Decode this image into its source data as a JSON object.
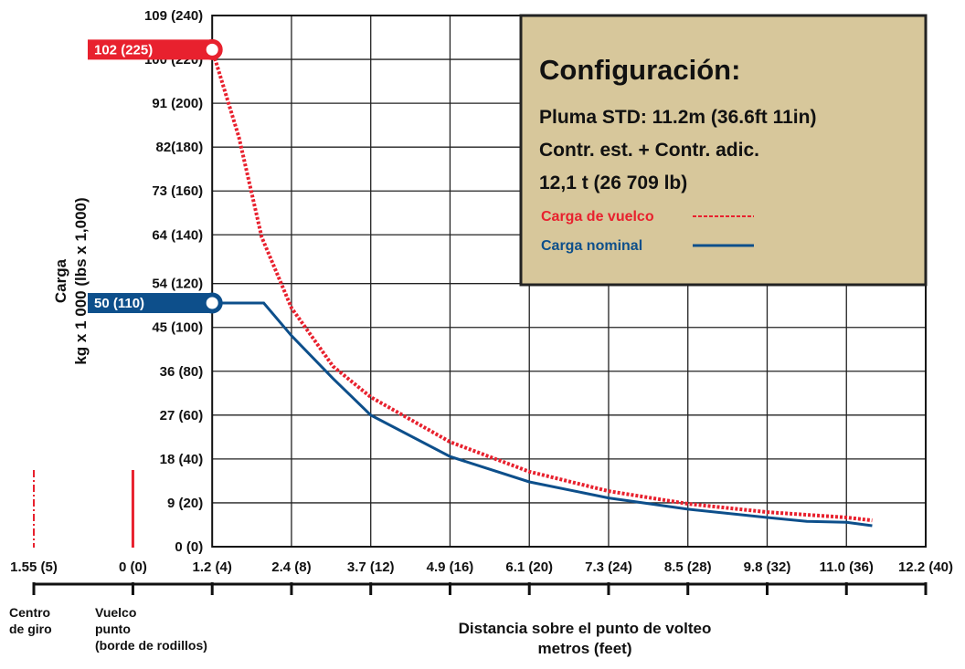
{
  "chart_data": {
    "type": "line",
    "y_title": [
      "Carga",
      "kg x 1 000 (lbs x 1,000)"
    ],
    "x_title": [
      "Distancia sobre el punto de volteo",
      "metros (feet)"
    ],
    "x_notes": [
      [
        "Centro",
        "de giro"
      ],
      [
        "Vuelco",
        "punto",
        "(borde de rodillos)"
      ]
    ],
    "xlim": [
      -5,
      40
    ],
    "xticks": [
      {
        "value": -5,
        "label": "1.55 (5)"
      },
      {
        "value": 0,
        "label": "0 (0)"
      },
      {
        "value": 4,
        "label": "1.2 (4)"
      },
      {
        "value": 8,
        "label": "2.4 (8)"
      },
      {
        "value": 12,
        "label": "3.7 (12)"
      },
      {
        "value": 16,
        "label": "4.9 (16)"
      },
      {
        "value": 20,
        "label": "6.1 (20)"
      },
      {
        "value": 24,
        "label": "7.3 (24)"
      },
      {
        "value": 28,
        "label": "8.5 (28)"
      },
      {
        "value": 32,
        "label": "9.8 (32)"
      },
      {
        "value": 36,
        "label": "11.0 (36)"
      },
      {
        "value": 40,
        "label": "12.2 (40)"
      }
    ],
    "ylim": [
      0,
      109
    ],
    "yticks": [
      {
        "value": 0,
        "label": "0 (0)"
      },
      {
        "value": 9,
        "label": "9 (20)"
      },
      {
        "value": 18,
        "label": "18 (40)"
      },
      {
        "value": 27,
        "label": "27 (60)"
      },
      {
        "value": 36,
        "label": "36 (80)"
      },
      {
        "value": 45,
        "label": "45 (100)"
      },
      {
        "value": 54,
        "label": "54 (120)"
      },
      {
        "value": 64,
        "label": "64 (140)"
      },
      {
        "value": 73,
        "label": "73 (160)"
      },
      {
        "value": 82,
        "label": "82(180)"
      },
      {
        "value": 91,
        "label": "91 (200)"
      },
      {
        "value": 100,
        "label": "100 (220)"
      },
      {
        "value": 109,
        "label": "109 (240)"
      }
    ],
    "grid": true,
    "box": {
      "title": "Configuración:",
      "lines": [
        "Pluma STD: 11.2m (36.6ft 11in)",
        "Contr. est. + Contr. adic.",
        "12,1 t (26 709 lb)"
      ]
    },
    "series": [
      {
        "name": "Carga de vuelco",
        "color": "#e8212e",
        "dashed": true,
        "start_label": "102 (225)",
        "x": [
          4,
          5.35,
          6.5,
          8,
          10.1,
          12,
          16,
          20,
          24,
          28,
          32,
          36,
          37.3
        ],
        "values": [
          102,
          84,
          63.5,
          49,
          37,
          30.7,
          21.5,
          15.4,
          11.4,
          8.8,
          7.1,
          6,
          5.4
        ]
      },
      {
        "name": "Carga nominal",
        "color": "#0d4f8b",
        "dashed": false,
        "start_label": "50 (110)",
        "x": [
          4,
          6.6,
          8,
          10.1,
          12,
          16,
          20,
          24,
          28,
          32,
          34,
          36,
          37.3
        ],
        "values": [
          50,
          50,
          43.3,
          34.5,
          27,
          18.5,
          13.3,
          10,
          7.7,
          6,
          5.2,
          5,
          4.3
        ]
      }
    ]
  }
}
